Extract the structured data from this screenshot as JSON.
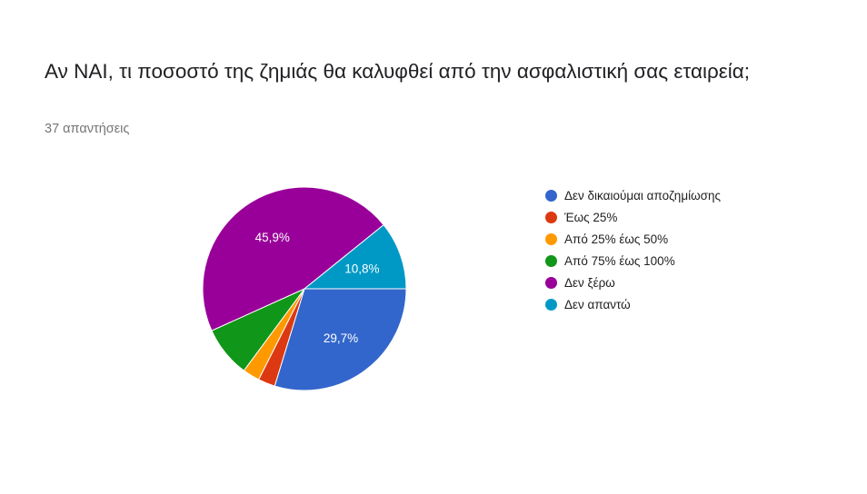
{
  "card": {
    "title": "Αν ΝΑΙ, τι ποσοστό της ζημιάς θα καλυφθεί από την ασφαλιστική σας εταιρεία;",
    "responses": "37 απαντήσεις"
  },
  "chart_data": {
    "type": "pie",
    "title": "Αν ΝΑΙ, τι ποσοστό της ζημιάς θα καλυφθεί από την ασφαλιστική σας εταιρεία;",
    "legend_position": "right",
    "slices": [
      {
        "label": "Δεν δικαιούμαι αποζημίωσης",
        "value": 29.7,
        "display": "29,7%",
        "color": "#3366cc"
      },
      {
        "label": "Έως 25%",
        "value": 2.7,
        "display": "",
        "color": "#dc3912"
      },
      {
        "label": "Από 25% έως 50%",
        "value": 2.7,
        "display": "",
        "color": "#ff9900"
      },
      {
        "label": "Από 75% έως 100%",
        "value": 8.1,
        "display": "",
        "color": "#109618"
      },
      {
        "label": "Δεν ξέρω",
        "value": 45.9,
        "display": "45,9%",
        "color": "#990099"
      },
      {
        "label": "Δεν απαντώ",
        "value": 10.8,
        "display": "10,8%",
        "color": "#0099c6"
      }
    ]
  }
}
